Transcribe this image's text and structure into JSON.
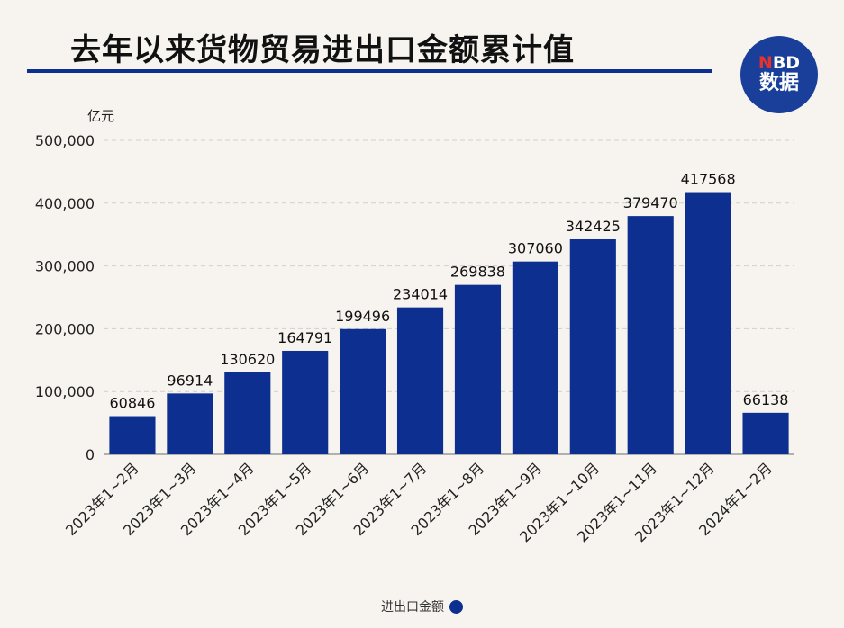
{
  "title": "去年以来货物贸易进出口金额累计值",
  "logo": {
    "brand_n": "N",
    "brand_rest": "BD",
    "sub": "数据"
  },
  "colors": {
    "bar": "#0d2f8f",
    "title_rule": "#0d2f8f",
    "background": "#f7f4ef"
  },
  "chart_data": {
    "type": "bar",
    "ylabel": "亿元",
    "ylim": [
      0,
      500000
    ],
    "yticks": [
      0,
      100000,
      200000,
      300000,
      400000,
      500000
    ],
    "ytick_labels": [
      "0",
      "100,000",
      "200,000",
      "300,000",
      "400,000",
      "500,000"
    ],
    "grid": true,
    "legend_position": "bottom",
    "categories": [
      "2023年1~2月",
      "2023年1~3月",
      "2023年1~4月",
      "2023年1~5月",
      "2023年1~6月",
      "2023年1~7月",
      "2023年1~8月",
      "2023年1~9月",
      "2023年1~10月",
      "2023年1~11月",
      "2023年1~12月",
      "2024年1~2月"
    ],
    "series": [
      {
        "name": "进出口金额",
        "values": [
          60846,
          96914,
          130620,
          164791,
          199496,
          234014,
          269838,
          307060,
          342425,
          379470,
          417568,
          66138
        ]
      }
    ]
  }
}
